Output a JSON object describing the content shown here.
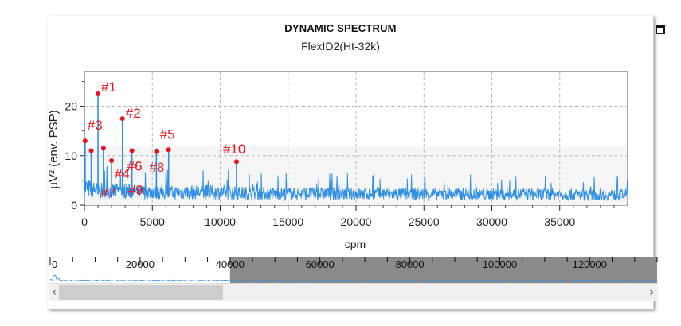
{
  "window": {
    "title": "DYNAMIC SPECTRUM",
    "maximize_icon": "maximize-icon"
  },
  "chart_data": {
    "type": "line",
    "title": "FlexID2(Ht-32k)",
    "xlabel": "cpm",
    "ylabel": "µV² (env. PSP)",
    "xlim": [
      0,
      40000
    ],
    "ylim": [
      0,
      27
    ],
    "xticks": [
      "0",
      "5000",
      "10000",
      "15000",
      "20000",
      "25000",
      "30000",
      "35000"
    ],
    "yticks": [
      "0",
      "10",
      "20"
    ],
    "grid": true,
    "series_color": "#2f8fe6",
    "marker_color": "#e8131c",
    "baseline": [
      [
        0,
        4.6
      ],
      [
        500,
        4.0
      ],
      [
        1000,
        3.6
      ],
      [
        2000,
        3.5
      ],
      [
        3000,
        3.6
      ],
      [
        4000,
        3.2
      ],
      [
        5000,
        3.4
      ],
      [
        6000,
        3.1
      ],
      [
        8000,
        3.3
      ],
      [
        10000,
        3.2
      ],
      [
        12000,
        3.0
      ],
      [
        15000,
        2.9
      ],
      [
        18000,
        2.9
      ],
      [
        20000,
        2.8
      ],
      [
        22000,
        2.9
      ],
      [
        25000,
        2.8
      ],
      [
        28000,
        2.8
      ],
      [
        30000,
        2.7
      ],
      [
        32000,
        2.8
      ],
      [
        35000,
        2.7
      ],
      [
        38000,
        2.6
      ],
      [
        40000,
        2.6
      ]
    ],
    "peaks": [
      {
        "label": "#1",
        "x": 1000,
        "y": 22.5
      },
      {
        "label": "#2",
        "x": 2800,
        "y": 17.5
      },
      {
        "label": "#3",
        "x": 50,
        "y": 13.0
      },
      {
        "label": "#4",
        "x": 2000,
        "y": 9.0
      },
      {
        "label": "#5",
        "x": 6200,
        "y": 11.2
      },
      {
        "label": "#6",
        "x": 3500,
        "y": 11.0
      },
      {
        "label": "#7",
        "x": 500,
        "y": 11.0
      },
      {
        "label": "#8",
        "x": 5300,
        "y": 10.8
      },
      {
        "label": "#9",
        "x": 1400,
        "y": 11.5
      },
      {
        "label": "#10",
        "x": 11200,
        "y": 8.8
      }
    ]
  },
  "overview": {
    "ticks": [
      "0",
      "20000",
      "40000",
      "60000",
      "80000",
      "100000",
      "120000"
    ],
    "range": [
      0,
      135000
    ],
    "window_start": 0,
    "window_end": 40000
  },
  "scrollbar": {
    "left_arrow": "‹",
    "right_arrow": "›"
  }
}
